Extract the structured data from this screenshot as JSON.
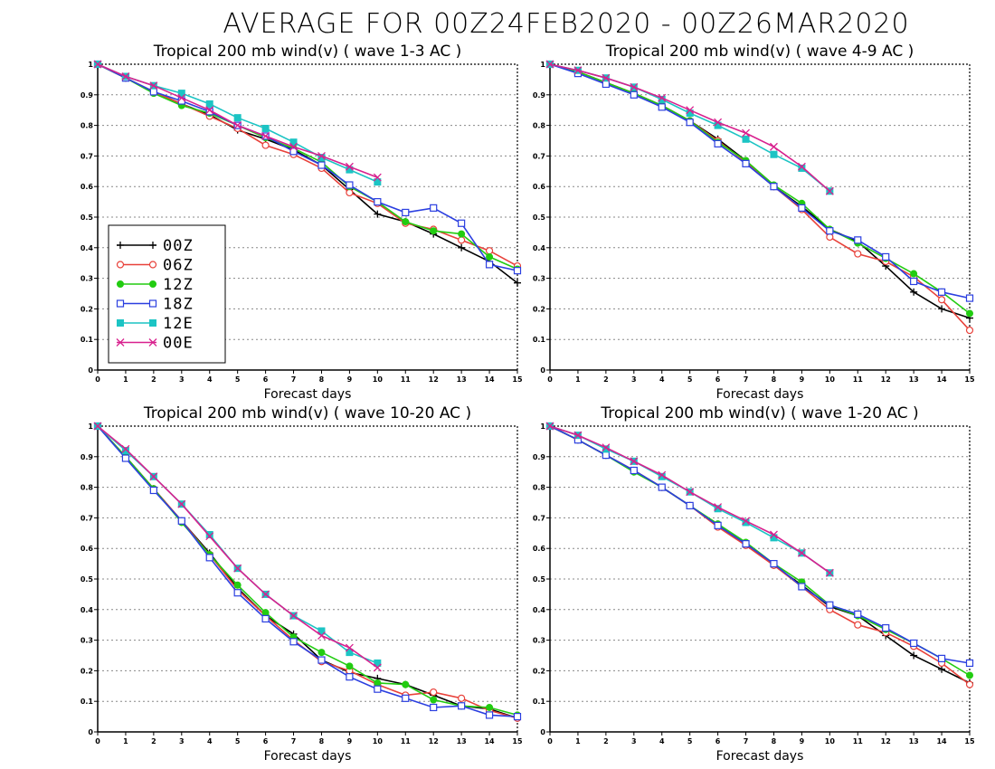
{
  "title": "AVERAGE FOR 00Z24FEB2020 - 00Z26MAR2020",
  "colors": {
    "00Z": "#000000",
    "06Z": "#e8413a",
    "12Z": "#22cc11",
    "18Z": "#2b3fe0",
    "12E": "#1cc4c4",
    "00E": "#d8208e"
  },
  "legend": [
    {
      "name": "00Z",
      "marker": "plus",
      "color": "#000000"
    },
    {
      "name": "06Z",
      "marker": "circle",
      "color": "#e8413a"
    },
    {
      "name": "12Z",
      "marker": "filled-circle",
      "color": "#22cc11"
    },
    {
      "name": "18Z",
      "marker": "square",
      "color": "#2b3fe0"
    },
    {
      "name": "12E",
      "marker": "filled-square",
      "color": "#1cc4c4"
    },
    {
      "name": "00E",
      "marker": "x",
      "color": "#d8208e"
    }
  ],
  "chart_data": [
    {
      "type": "line",
      "title": "Tropical 200 mb wind(v) ( wave 1-3 AC )",
      "xlabel": "Forecast days",
      "ylabel": "",
      "xlim": [
        0,
        15
      ],
      "ylim": [
        0,
        1
      ],
      "x_ticks": [
        "0",
        "1",
        "2",
        "3",
        "4",
        "5",
        "6",
        "7",
        "8",
        "9",
        "10",
        "11",
        "12",
        "13",
        "14",
        "15"
      ],
      "y_ticks": [
        "0",
        "0.1",
        "0.2",
        "0.3",
        "0.4",
        "0.5",
        "0.6",
        "0.7",
        "0.8",
        "0.9",
        "1"
      ],
      "grid": "horizontal dotted",
      "legend_position": "left-middle",
      "series": [
        {
          "name": "00Z",
          "x": [
            0,
            1,
            2,
            3,
            4,
            5,
            6,
            7,
            8,
            9,
            10,
            11,
            12,
            13,
            14,
            15
          ],
          "values": [
            1,
            0.955,
            0.91,
            0.87,
            0.835,
            0.785,
            0.755,
            0.72,
            0.67,
            0.59,
            0.51,
            0.485,
            0.445,
            0.4,
            0.355,
            0.285
          ]
        },
        {
          "name": "06Z",
          "x": [
            0,
            1,
            2,
            3,
            4,
            5,
            6,
            7,
            8,
            9,
            10,
            11,
            12,
            13,
            14,
            15
          ],
          "values": [
            1,
            0.955,
            0.91,
            0.87,
            0.83,
            0.79,
            0.735,
            0.705,
            0.66,
            0.58,
            0.545,
            0.48,
            0.46,
            0.425,
            0.39,
            0.34
          ]
        },
        {
          "name": "12Z",
          "x": [
            0,
            1,
            2,
            3,
            4,
            5,
            6,
            7,
            8,
            9,
            10,
            11,
            12,
            13,
            14,
            15
          ],
          "values": [
            1,
            0.955,
            0.905,
            0.865,
            0.84,
            0.8,
            0.76,
            0.725,
            0.68,
            0.6,
            0.55,
            0.485,
            0.455,
            0.445,
            0.37,
            0.33
          ]
        },
        {
          "name": "18Z",
          "x": [
            0,
            1,
            2,
            3,
            4,
            5,
            6,
            7,
            8,
            9,
            10,
            11,
            12,
            13,
            14,
            15
          ],
          "values": [
            1,
            0.955,
            0.91,
            0.88,
            0.845,
            0.8,
            0.765,
            0.715,
            0.67,
            0.605,
            0.55,
            0.515,
            0.53,
            0.48,
            0.345,
            0.325
          ]
        },
        {
          "name": "12E",
          "x": [
            0,
            1,
            2,
            3,
            4,
            5,
            6,
            7,
            8,
            9,
            10
          ],
          "values": [
            1,
            0.96,
            0.93,
            0.905,
            0.87,
            0.825,
            0.79,
            0.745,
            0.695,
            0.655,
            0.615
          ]
        },
        {
          "name": "00E",
          "x": [
            0,
            1,
            2,
            3,
            4,
            5,
            6,
            7,
            8,
            9,
            10
          ],
          "values": [
            1,
            0.96,
            0.93,
            0.89,
            0.85,
            0.8,
            0.765,
            0.73,
            0.7,
            0.665,
            0.63
          ]
        }
      ]
    },
    {
      "type": "line",
      "title": "Tropical 200 mb wind(v) ( wave 4-9 AC )",
      "xlabel": "Forecast days",
      "ylabel": "",
      "xlim": [
        0,
        15
      ],
      "ylim": [
        0,
        1
      ],
      "x_ticks": [
        "0",
        "1",
        "2",
        "3",
        "4",
        "5",
        "6",
        "7",
        "8",
        "9",
        "10",
        "11",
        "12",
        "13",
        "14",
        "15"
      ],
      "y_ticks": [
        "0",
        "0.1",
        "0.2",
        "0.3",
        "0.4",
        "0.5",
        "0.6",
        "0.7",
        "0.8",
        "0.9",
        "1"
      ],
      "grid": "horizontal dotted",
      "series": [
        {
          "name": "00Z",
          "x": [
            0,
            1,
            2,
            3,
            4,
            5,
            6,
            7,
            8,
            9,
            10,
            11,
            12,
            13,
            14,
            15
          ],
          "values": [
            1,
            0.975,
            0.94,
            0.905,
            0.865,
            0.815,
            0.755,
            0.685,
            0.6,
            0.535,
            0.46,
            0.42,
            0.34,
            0.255,
            0.2,
            0.17
          ]
        },
        {
          "name": "06Z",
          "x": [
            0,
            1,
            2,
            3,
            4,
            5,
            6,
            7,
            8,
            9,
            10,
            11,
            12,
            13,
            14,
            15
          ],
          "values": [
            1,
            0.975,
            0.94,
            0.905,
            0.865,
            0.815,
            0.75,
            0.68,
            0.6,
            0.525,
            0.435,
            0.38,
            0.355,
            0.305,
            0.23,
            0.13
          ]
        },
        {
          "name": "12Z",
          "x": [
            0,
            1,
            2,
            3,
            4,
            5,
            6,
            7,
            8,
            9,
            10,
            11,
            12,
            13,
            14,
            15
          ],
          "values": [
            1,
            0.975,
            0.94,
            0.905,
            0.865,
            0.815,
            0.745,
            0.685,
            0.605,
            0.545,
            0.46,
            0.415,
            0.365,
            0.315,
            0.255,
            0.185
          ]
        },
        {
          "name": "18Z",
          "x": [
            0,
            1,
            2,
            3,
            4,
            5,
            6,
            7,
            8,
            9,
            10,
            11,
            12,
            13,
            14,
            15
          ],
          "values": [
            1,
            0.97,
            0.935,
            0.9,
            0.86,
            0.81,
            0.74,
            0.675,
            0.6,
            0.53,
            0.455,
            0.425,
            0.37,
            0.29,
            0.255,
            0.235
          ]
        },
        {
          "name": "12E",
          "x": [
            0,
            1,
            2,
            3,
            4,
            5,
            6,
            7,
            8,
            9,
            10
          ],
          "values": [
            1,
            0.98,
            0.955,
            0.925,
            0.885,
            0.84,
            0.8,
            0.755,
            0.705,
            0.66,
            0.585
          ]
        },
        {
          "name": "00E",
          "x": [
            0,
            1,
            2,
            3,
            4,
            5,
            6,
            7,
            8,
            9,
            10
          ],
          "values": [
            1,
            0.98,
            0.955,
            0.925,
            0.89,
            0.85,
            0.81,
            0.775,
            0.73,
            0.665,
            0.585
          ]
        }
      ]
    },
    {
      "type": "line",
      "title": "Tropical 200 mb wind(v) ( wave 10-20 AC )",
      "xlabel": "Forecast days",
      "ylabel": "",
      "xlim": [
        0,
        15
      ],
      "ylim": [
        0,
        1
      ],
      "x_ticks": [
        "0",
        "1",
        "2",
        "3",
        "4",
        "5",
        "6",
        "7",
        "8",
        "9",
        "10",
        "11",
        "12",
        "13",
        "14",
        "15"
      ],
      "y_ticks": [
        "0",
        "0.1",
        "0.2",
        "0.3",
        "0.4",
        "0.5",
        "0.6",
        "0.7",
        "0.8",
        "0.9",
        "1"
      ],
      "grid": "horizontal dotted",
      "series": [
        {
          "name": "00Z",
          "x": [
            0,
            1,
            2,
            3,
            4,
            5,
            6,
            7,
            8,
            9,
            10,
            11,
            12,
            13,
            14,
            15
          ],
          "values": [
            1,
            0.9,
            0.795,
            0.69,
            0.585,
            0.47,
            0.38,
            0.32,
            0.235,
            0.195,
            0.175,
            0.155,
            0.12,
            0.085,
            0.075,
            0.045
          ]
        },
        {
          "name": "06Z",
          "x": [
            0,
            1,
            2,
            3,
            4,
            5,
            6,
            7,
            8,
            9,
            10,
            11,
            12,
            13,
            14,
            15
          ],
          "values": [
            1,
            0.9,
            0.795,
            0.69,
            0.58,
            0.465,
            0.38,
            0.3,
            0.23,
            0.2,
            0.155,
            0.12,
            0.13,
            0.11,
            0.07,
            0.045
          ]
        },
        {
          "name": "12Z",
          "x": [
            0,
            1,
            2,
            3,
            4,
            5,
            6,
            7,
            8,
            9,
            10,
            11,
            12,
            13,
            14,
            15
          ],
          "values": [
            1,
            0.9,
            0.795,
            0.685,
            0.58,
            0.48,
            0.39,
            0.31,
            0.26,
            0.215,
            0.16,
            0.155,
            0.105,
            0.085,
            0.08,
            0.055
          ]
        },
        {
          "name": "18Z",
          "x": [
            0,
            1,
            2,
            3,
            4,
            5,
            6,
            7,
            8,
            9,
            10,
            11,
            12,
            13,
            14,
            15
          ],
          "values": [
            1,
            0.895,
            0.79,
            0.69,
            0.57,
            0.455,
            0.37,
            0.295,
            0.235,
            0.18,
            0.14,
            0.11,
            0.08,
            0.085,
            0.055,
            0.05
          ]
        },
        {
          "name": "12E",
          "x": [
            0,
            1,
            2,
            3,
            4,
            5,
            6,
            7,
            8,
            9,
            10
          ],
          "values": [
            1,
            0.92,
            0.835,
            0.745,
            0.645,
            0.535,
            0.45,
            0.38,
            0.33,
            0.26,
            0.225
          ]
        },
        {
          "name": "00E",
          "x": [
            0,
            1,
            2,
            3,
            4,
            5,
            6,
            7,
            8,
            9,
            10
          ],
          "values": [
            1,
            0.925,
            0.835,
            0.745,
            0.64,
            0.535,
            0.45,
            0.38,
            0.315,
            0.275,
            0.21
          ]
        }
      ]
    },
    {
      "type": "line",
      "title": "Tropical 200 mb wind(v) ( wave 1-20 AC )",
      "xlabel": "Forecast days",
      "ylabel": "",
      "xlim": [
        0,
        15
      ],
      "ylim": [
        0,
        1
      ],
      "x_ticks": [
        "0",
        "1",
        "2",
        "3",
        "4",
        "5",
        "6",
        "7",
        "8",
        "9",
        "10",
        "11",
        "12",
        "13",
        "14",
        "15"
      ],
      "y_ticks": [
        "0",
        "0.1",
        "0.2",
        "0.3",
        "0.4",
        "0.5",
        "0.6",
        "0.7",
        "0.8",
        "0.9",
        "1"
      ],
      "grid": "horizontal dotted",
      "series": [
        {
          "name": "00Z",
          "x": [
            0,
            1,
            2,
            3,
            4,
            5,
            6,
            7,
            8,
            9,
            10,
            11,
            12,
            13,
            14,
            15
          ],
          "values": [
            1,
            0.955,
            0.905,
            0.855,
            0.8,
            0.74,
            0.675,
            0.615,
            0.545,
            0.48,
            0.41,
            0.38,
            0.315,
            0.25,
            0.205,
            0.16
          ]
        },
        {
          "name": "06Z",
          "x": [
            0,
            1,
            2,
            3,
            4,
            5,
            6,
            7,
            8,
            9,
            10,
            11,
            12,
            13,
            14,
            15
          ],
          "values": [
            1,
            0.955,
            0.905,
            0.855,
            0.8,
            0.74,
            0.67,
            0.61,
            0.545,
            0.475,
            0.4,
            0.35,
            0.325,
            0.28,
            0.225,
            0.155
          ]
        },
        {
          "name": "12Z",
          "x": [
            0,
            1,
            2,
            3,
            4,
            5,
            6,
            7,
            8,
            9,
            10,
            11,
            12,
            13,
            14,
            15
          ],
          "values": [
            1,
            0.955,
            0.905,
            0.85,
            0.8,
            0.74,
            0.68,
            0.62,
            0.55,
            0.49,
            0.415,
            0.38,
            0.335,
            0.29,
            0.24,
            0.185
          ]
        },
        {
          "name": "18Z",
          "x": [
            0,
            1,
            2,
            3,
            4,
            5,
            6,
            7,
            8,
            9,
            10,
            11,
            12,
            13,
            14,
            15
          ],
          "values": [
            1,
            0.955,
            0.905,
            0.855,
            0.8,
            0.74,
            0.675,
            0.615,
            0.55,
            0.475,
            0.415,
            0.385,
            0.34,
            0.29,
            0.24,
            0.225
          ]
        },
        {
          "name": "12E",
          "x": [
            0,
            1,
            2,
            3,
            4,
            5,
            6,
            7,
            8,
            9,
            10
          ],
          "values": [
            1,
            0.97,
            0.925,
            0.885,
            0.835,
            0.785,
            0.73,
            0.685,
            0.635,
            0.585,
            0.52
          ]
        },
        {
          "name": "00E",
          "x": [
            0,
            1,
            2,
            3,
            4,
            5,
            6,
            7,
            8,
            9,
            10
          ],
          "values": [
            1,
            0.97,
            0.93,
            0.885,
            0.84,
            0.785,
            0.735,
            0.69,
            0.645,
            0.585,
            0.52
          ]
        }
      ]
    }
  ]
}
